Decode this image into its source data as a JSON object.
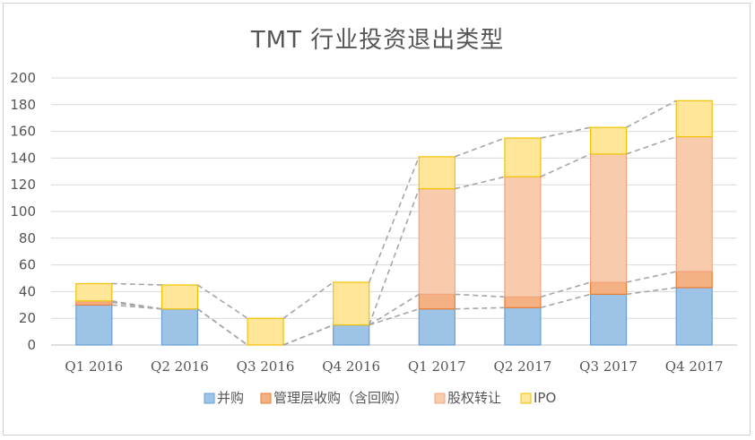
{
  "chart_data": {
    "type": "bar",
    "stacked": true,
    "title": "TMT 行业投资退出类型",
    "xlabel": "",
    "ylabel": "",
    "ylim": [
      0,
      200
    ],
    "yticks": [
      0,
      20,
      40,
      60,
      80,
      100,
      120,
      140,
      160,
      180,
      200
    ],
    "grid": true,
    "legend_position": "bottom",
    "categories": [
      "Q1 2016",
      "Q2 2016",
      "Q3 2016",
      "Q4 2016",
      "Q1 2017",
      "Q2 2017",
      "Q3 2017",
      "Q4 2017"
    ],
    "series": [
      {
        "name": "并购",
        "values": [
          30,
          27,
          0,
          15,
          27,
          28,
          38,
          43
        ],
        "color": "#9dc3e6"
      },
      {
        "name": "管理层收购（含回购）",
        "values": [
          2,
          0,
          0,
          0,
          11,
          8,
          9,
          12
        ],
        "color": "#f4b183"
      },
      {
        "name": "股权转让",
        "values": [
          1,
          0,
          0,
          0,
          79,
          90,
          96,
          101
        ],
        "color": "#f8cbad"
      },
      {
        "name": "IPO",
        "values": [
          13,
          18,
          20,
          32,
          24,
          29,
          20,
          27
        ],
        "color": "#ffe699"
      }
    ],
    "connector_lines": true
  }
}
